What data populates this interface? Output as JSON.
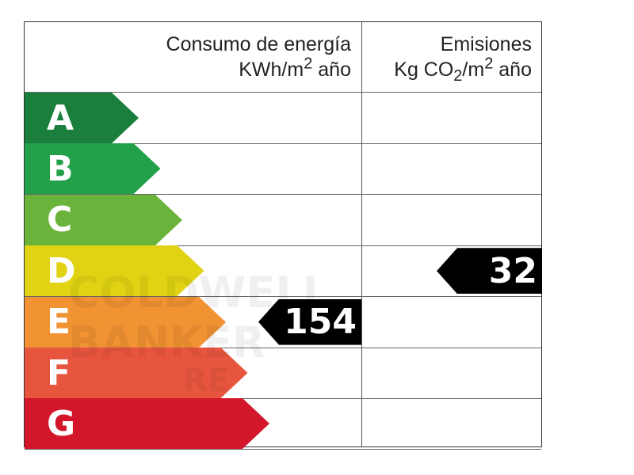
{
  "header": {
    "energy_line1": "Consumo de energía",
    "energy_line2": "KWh/m2 año",
    "emissions_line1": "Emisiones",
    "emissions_line2": "Kg CO2/m2 año"
  },
  "ratings": [
    {
      "letter": "A",
      "color": "#1a7f3c"
    },
    {
      "letter": "B",
      "color": "#23a04a"
    },
    {
      "letter": "C",
      "color": "#6bb43b"
    },
    {
      "letter": "D",
      "color": "#e1d313"
    },
    {
      "letter": "E",
      "color": "#f19233"
    },
    {
      "letter": "F",
      "color": "#e8553e"
    },
    {
      "letter": "G",
      "color": "#d3162a"
    }
  ],
  "energy": {
    "value": "154",
    "rating": "E"
  },
  "emissions": {
    "value": "32",
    "rating": "D"
  }
}
